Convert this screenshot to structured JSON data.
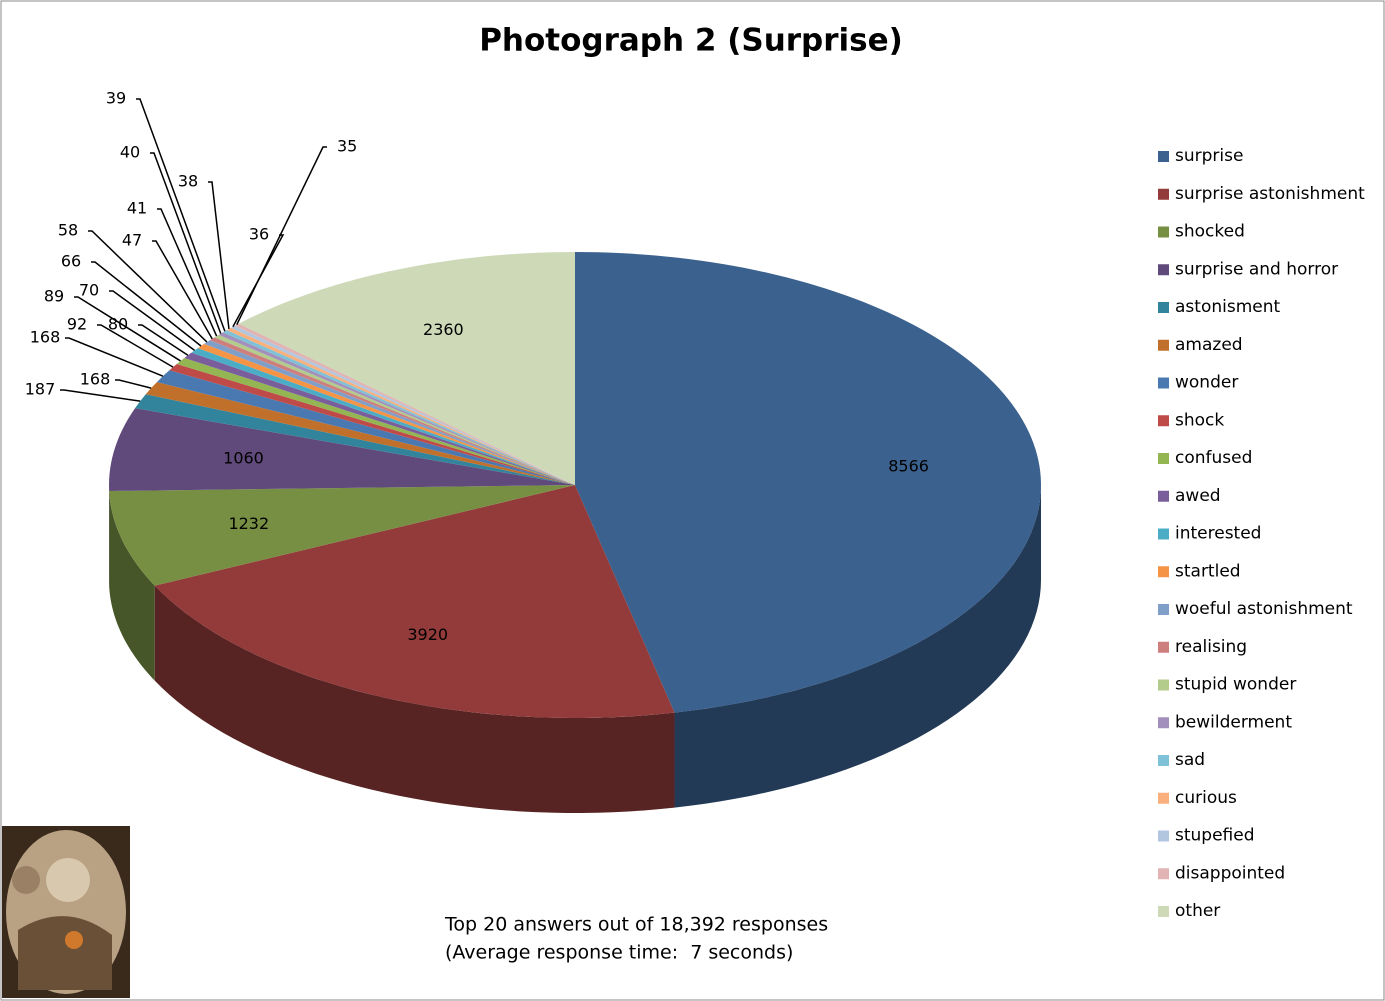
{
  "chart_data": {
    "type": "pie3d",
    "title": "Photograph 2 (Surprise)",
    "annotations": [
      "Top 20 answers out of 18,392 responses",
      "(Average response time:  7 seconds)"
    ],
    "categories": [
      "surprise",
      "surprise astonishment",
      "shocked",
      "surprise and horror",
      "astonisment",
      "amazed",
      "wonder",
      "shock",
      "confused",
      "awed",
      "interested",
      "startled",
      "woeful astonishment",
      "realising",
      "stupid wonder",
      "bewilderment",
      "sad",
      "curious",
      "stupefied",
      "disappointed",
      "other"
    ],
    "values": [
      8566,
      3920,
      1232,
      1060,
      187,
      168,
      168,
      92,
      89,
      80,
      70,
      66,
      58,
      47,
      41,
      40,
      39,
      38,
      36,
      35,
      2360
    ],
    "colors": [
      "#3b618f",
      "#933b3a",
      "#778f42",
      "#604a7b",
      "#31849b",
      "#c1702b",
      "#4a78b0",
      "#bf4b48",
      "#93b653",
      "#7a5e9c",
      "#4bacc6",
      "#f59445",
      "#7f9fc8",
      "#cd7f7e",
      "#b3cb8b",
      "#a28fbb",
      "#7fc1d6",
      "#f9b07c",
      "#b3c6e0",
      "#e1b3b2",
      "#cdd9b7"
    ],
    "legend": "right"
  }
}
